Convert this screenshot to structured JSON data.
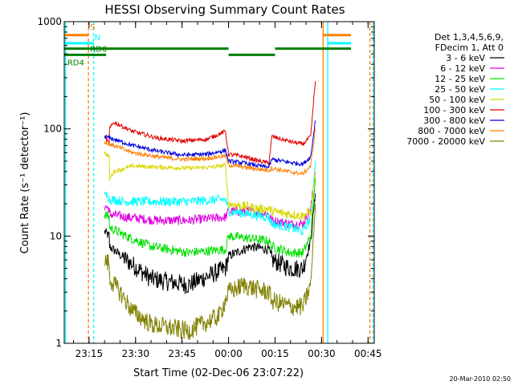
{
  "chart_data": {
    "type": "line",
    "title": "HESSI Observing Summary Count Rates",
    "xlabel": "Start Time (02-Dec-06 23:07:22)",
    "ylabel": "Count Rate (s⁻¹ detector⁻¹)",
    "yscale": "log",
    "ylim": [
      1,
      1000
    ],
    "xlim_minutes": [
      0,
      100
    ],
    "x_ticks": [
      {
        "label": "23:15",
        "minute": 8
      },
      {
        "label": "23:30",
        "minute": 23
      },
      {
        "label": "23:45",
        "minute": 38
      },
      {
        "label": "00:00",
        "minute": 53
      },
      {
        "label": "00:15",
        "minute": 68
      },
      {
        "label": "00:30",
        "minute": 83
      },
      {
        "label": "00:45",
        "minute": 98
      }
    ],
    "y_ticks": [
      1,
      10,
      100,
      1000
    ],
    "legend_header": [
      "Det 1,3,4,5,6,9,",
      "FDecim 1, Att 0"
    ],
    "legend_placement": "right",
    "timestamp": "20-Mar-2010 02:50",
    "series": [
      {
        "name": "3 - 6 keV",
        "color": "#000000",
        "x": [
          13,
          14.5,
          14.6,
          20,
          28,
          40,
          52,
          53,
          60,
          66,
          67,
          73,
          77,
          79.5,
          81
        ],
        "y": [
          11,
          10,
          8,
          6,
          4,
          3.5,
          5,
          6.5,
          8,
          7.5,
          6,
          5,
          5,
          9,
          25
        ]
      },
      {
        "name": "6 - 12 keV",
        "color": "#e000e0",
        "x": [
          13,
          14.5,
          14.6,
          20,
          30,
          40,
          52,
          53,
          60,
          66,
          67,
          73,
          77,
          79.5,
          81
        ],
        "y": [
          19,
          18,
          16,
          15,
          14,
          14,
          15,
          17,
          17,
          16,
          14,
          13,
          13,
          18,
          40
        ]
      },
      {
        "name": "12 - 25 keV",
        "color": "#00e000",
        "x": [
          13,
          14.5,
          14.6,
          20,
          28,
          40,
          52,
          53,
          60,
          66,
          67,
          73,
          77,
          79.5,
          81
        ],
        "y": [
          16,
          15,
          12,
          10,
          8,
          7,
          7.5,
          10,
          9.5,
          9,
          8,
          7,
          7,
          10,
          35
        ]
      },
      {
        "name": "25 - 50 keV",
        "color": "#00ffff",
        "x": [
          13,
          14.5,
          14.6,
          20,
          30,
          40,
          52,
          53,
          60,
          66,
          67,
          73,
          77,
          79.5,
          81
        ],
        "y": [
          24,
          23,
          22,
          21,
          21,
          21,
          22,
          17,
          16,
          15,
          13,
          12,
          11,
          15,
          50
        ]
      },
      {
        "name": "50 - 100 keV",
        "color": "#d8d800",
        "x": [
          13,
          14.5,
          14.6,
          16,
          22,
          30,
          40,
          48,
          52,
          53,
          58,
          63,
          66,
          67,
          73,
          77,
          79.5,
          81
        ],
        "y": [
          60,
          55,
          34,
          40,
          45,
          44,
          43,
          44,
          46,
          20,
          19,
          18,
          18,
          17,
          16,
          15.5,
          17,
          40
        ]
      },
      {
        "name": "100 - 300 keV",
        "color": "#e00000",
        "x": [
          13,
          14.5,
          14.6,
          16,
          22,
          30,
          38,
          46,
          52,
          53,
          58,
          63,
          66,
          67,
          70,
          74,
          77,
          79.5,
          81
        ],
        "y": [
          85,
          72,
          100,
          115,
          95,
          82,
          77,
          80,
          95,
          58,
          55,
          50,
          48,
          85,
          80,
          75,
          72,
          85,
          280
        ]
      },
      {
        "name": "300 - 800 keV",
        "color": "#0000e0",
        "x": [
          13,
          16,
          22,
          30,
          38,
          46,
          52,
          53,
          58,
          63,
          66,
          67,
          72,
          77,
          79.5,
          81
        ],
        "y": [
          85,
          80,
          70,
          62,
          57,
          58,
          63,
          50,
          48,
          45,
          44,
          52,
          49,
          47,
          55,
          120
        ]
      },
      {
        "name": "800 - 7000 keV",
        "color": "#ff8000",
        "x": [
          13,
          16,
          22,
          30,
          38,
          46,
          52,
          53,
          58,
          63,
          66,
          67,
          72,
          77,
          79.5,
          81
        ],
        "y": [
          75,
          70,
          60,
          55,
          52,
          53,
          56,
          46,
          44,
          42,
          41,
          43,
          40,
          38,
          45,
          100
        ]
      },
      {
        "name": "7000 - 20000 keV",
        "color": "#808000",
        "x": [
          13,
          14.5,
          14.6,
          18,
          22,
          28,
          40,
          50,
          53,
          58,
          62,
          66,
          67,
          73,
          77,
          79.5,
          81
        ],
        "y": [
          6,
          5.5,
          4,
          3,
          2,
          1.5,
          1.3,
          1.8,
          3,
          3.5,
          3.2,
          3,
          2.5,
          2.2,
          2.2,
          3.5,
          20
        ]
      }
    ],
    "annotations": [
      {
        "label": "S",
        "color": "#ff8000",
        "minute": 8.4,
        "y": 900
      },
      {
        "label": "N",
        "color": "#00ffff",
        "minute": 9.7,
        "y": 720
      },
      {
        "label": "RD0",
        "color": "#008000",
        "minute": 8.4,
        "y": 560
      },
      {
        "label": "RD4",
        "color": "#008000",
        "minute": 1,
        "y": 420
      }
    ],
    "flags": {
      "saa": [
        {
          "color": "#ff8000",
          "y": 750,
          "x": [
            [
              0,
              7.8
            ],
            [
              83.5,
              92.5
            ]
          ]
        },
        {
          "color": "#00ffff",
          "y": 630,
          "x": [
            [
              0,
              9.5
            ],
            [
              85,
              92.5
            ]
          ]
        }
      ],
      "decimation": [
        {
          "color": "#008000",
          "y": 560,
          "x": [
            [
              0,
              53
            ],
            [
              68,
              92.5
            ]
          ]
        },
        {
          "color": "#008000",
          "y": 490,
          "x": [
            [
              0,
              13.5
            ],
            [
              53,
              68
            ]
          ]
        }
      ],
      "vlines": [
        {
          "color": "#00ffff",
          "minute": 0.4,
          "style": "solid"
        },
        {
          "color": "#ff8000",
          "minute": 7.8,
          "style": "dashed"
        },
        {
          "color": "#00ffff",
          "minute": 9.5,
          "style": "dashed"
        },
        {
          "color": "#ff8000",
          "minute": 83.5,
          "style": "solid"
        },
        {
          "color": "#00ffff",
          "minute": 85,
          "style": "solid"
        },
        {
          "color": "#ff8000",
          "minute": 98.6,
          "style": "dashed"
        },
        {
          "color": "#00ffff",
          "minute": 99.6,
          "style": "dashed"
        }
      ]
    }
  }
}
